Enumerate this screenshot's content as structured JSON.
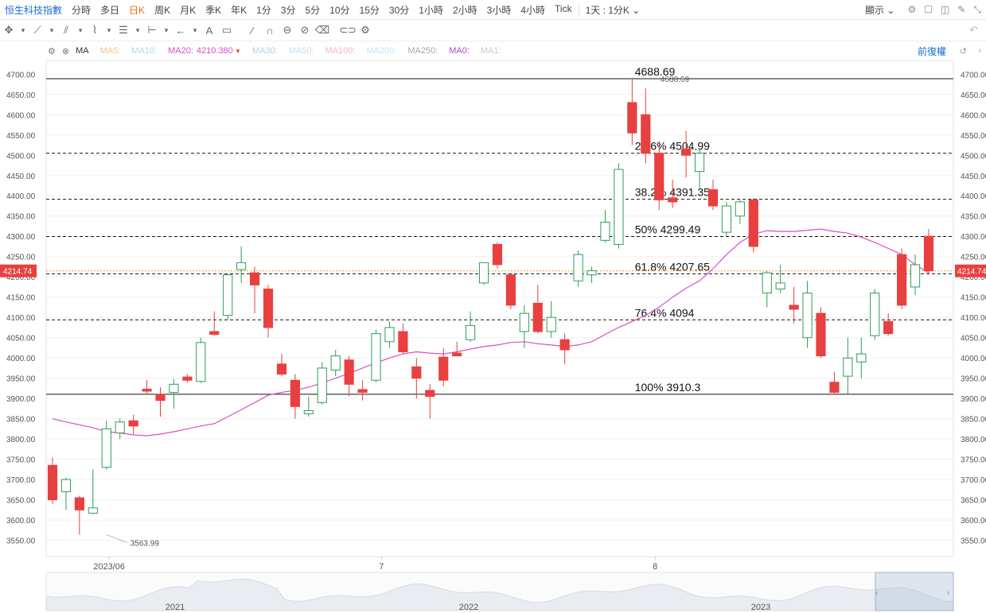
{
  "toolbar": {
    "symbol": "恒生科技指數",
    "periods": [
      "分時",
      "多日",
      "日K",
      "周K",
      "月K",
      "季K",
      "年K",
      "1分",
      "3分",
      "5分",
      "10分",
      "15分",
      "30分",
      "1小時",
      "2小時",
      "3小時",
      "4小時",
      "Tick"
    ],
    "active_period": "日K",
    "range_label": "1天 : 1分K",
    "display_label": "顯示"
  },
  "ma_bar": {
    "indicator": "MA",
    "items": [
      {
        "label": "MA5:",
        "value": "",
        "color": "#f4c28f"
      },
      {
        "label": "MA10:",
        "value": "",
        "color": "#b7d3f0"
      },
      {
        "label": "MA20:",
        "value": "4210.380",
        "color": "#d94fc5"
      },
      {
        "label": "MA30:",
        "value": "",
        "color": "#b5cfee"
      },
      {
        "label": "MA50:",
        "value": "",
        "color": "#c9daf1"
      },
      {
        "label": "MA100:",
        "value": "",
        "color": "#f2b6c8"
      },
      {
        "label": "MA200:",
        "value": "",
        "color": "#bde8f2"
      },
      {
        "label": "MA250:",
        "value": "",
        "color": "#a9a9a9"
      },
      {
        "label": "MA0:",
        "value": "",
        "color": "#b048c4"
      },
      {
        "label": "MA1:",
        "value": "",
        "color": "#c9c9c9"
      }
    ],
    "adjust_label": "前復權"
  },
  "chart_data": {
    "type": "candlestick",
    "up_color": "#2e9e5a",
    "down_color": "#e84040",
    "ma_color": "#d94fc5",
    "ylim": [
      3510,
      4730
    ],
    "y_ticks": [
      3550,
      3600,
      3650,
      3700,
      3750,
      3800,
      3850,
      3900,
      3950,
      4000,
      4050,
      4100,
      4150,
      4200,
      4250,
      4300,
      4350,
      4400,
      4450,
      4500,
      4550,
      4600,
      4650,
      4700
    ],
    "current_price": "4214.74",
    "x_labels": [
      {
        "label": "2023/06",
        "index": 4.2
      },
      {
        "label": "7",
        "index": 24.4
      },
      {
        "label": "8",
        "index": 44.7
      }
    ],
    "candles": [
      {
        "o": 3735,
        "h": 3755,
        "l": 3640,
        "c": 3650
      },
      {
        "o": 3670,
        "h": 3705,
        "l": 3625,
        "c": 3700
      },
      {
        "o": 3655,
        "h": 3660,
        "l": 3563.99,
        "c": 3625
      },
      {
        "o": 3617,
        "h": 3725,
        "l": 3615,
        "c": 3630
      },
      {
        "o": 3730,
        "h": 3845,
        "l": 3725,
        "c": 3825
      },
      {
        "o": 3815,
        "h": 3850,
        "l": 3800,
        "c": 3842
      },
      {
        "o": 3845,
        "h": 3860,
        "l": 3812,
        "c": 3832
      },
      {
        "o": 3923,
        "h": 3945,
        "l": 3912,
        "c": 3918
      },
      {
        "o": 3910,
        "h": 3928,
        "l": 3855,
        "c": 3895
      },
      {
        "o": 3915,
        "h": 3948,
        "l": 3875,
        "c": 3935
      },
      {
        "o": 3953,
        "h": 3960,
        "l": 3938,
        "c": 3945
      },
      {
        "o": 3942,
        "h": 4050,
        "l": 3938,
        "c": 4038
      },
      {
        "o": 4065,
        "h": 4115,
        "l": 4055,
        "c": 4058
      },
      {
        "o": 4105,
        "h": 4205,
        "l": 4095,
        "c": 4205
      },
      {
        "o": 4218,
        "h": 4275,
        "l": 4185,
        "c": 4235
      },
      {
        "o": 4210,
        "h": 4225,
        "l": 4110,
        "c": 4180
      },
      {
        "o": 4170,
        "h": 4180,
        "l": 4050,
        "c": 4075
      },
      {
        "o": 3985,
        "h": 4010,
        "l": 3955,
        "c": 3960
      },
      {
        "o": 3945,
        "h": 3960,
        "l": 3850,
        "c": 3880
      },
      {
        "o": 3862,
        "h": 3905,
        "l": 3855,
        "c": 3870
      },
      {
        "o": 3890,
        "h": 3990,
        "l": 3885,
        "c": 3975
      },
      {
        "o": 3970,
        "h": 4020,
        "l": 3955,
        "c": 4005
      },
      {
        "o": 3995,
        "h": 4005,
        "l": 3905,
        "c": 3935
      },
      {
        "o": 3922,
        "h": 3945,
        "l": 3895,
        "c": 3915
      },
      {
        "o": 3945,
        "h": 4070,
        "l": 3940,
        "c": 4060
      },
      {
        "o": 4040,
        "h": 4090,
        "l": 4025,
        "c": 4075
      },
      {
        "o": 4065,
        "h": 4085,
        "l": 4010,
        "c": 4015
      },
      {
        "o": 3978,
        "h": 4000,
        "l": 3900,
        "c": 3950
      },
      {
        "o": 3920,
        "h": 3935,
        "l": 3850,
        "c": 3905
      },
      {
        "o": 4002,
        "h": 4025,
        "l": 3930,
        "c": 3945
      },
      {
        "o": 4012,
        "h": 4040,
        "l": 4005,
        "c": 4005
      },
      {
        "o": 4045,
        "h": 4115,
        "l": 4040,
        "c": 4080
      },
      {
        "o": 4185,
        "h": 4235,
        "l": 4180,
        "c": 4235
      },
      {
        "o": 4280,
        "h": 4285,
        "l": 4220,
        "c": 4230
      },
      {
        "o": 4205,
        "h": 4210,
        "l": 4120,
        "c": 4130
      },
      {
        "o": 4065,
        "h": 4130,
        "l": 4025,
        "c": 4110
      },
      {
        "o": 4135,
        "h": 4180,
        "l": 4060,
        "c": 4065
      },
      {
        "o": 4065,
        "h": 4140,
        "l": 4050,
        "c": 4100
      },
      {
        "o": 4045,
        "h": 4060,
        "l": 3985,
        "c": 4020
      },
      {
        "o": 4190,
        "h": 4265,
        "l": 4175,
        "c": 4255
      },
      {
        "o": 4205,
        "h": 4225,
        "l": 4185,
        "c": 4215
      },
      {
        "o": 4290,
        "h": 4365,
        "l": 4285,
        "c": 4335
      },
      {
        "o": 4280,
        "h": 4480,
        "l": 4270,
        "c": 4465
      },
      {
        "o": 4630,
        "h": 4688.69,
        "l": 4525,
        "c": 4555
      },
      {
        "o": 4600,
        "h": 4665,
        "l": 4480,
        "c": 4505
      },
      {
        "o": 4505,
        "h": 4535,
        "l": 4365,
        "c": 4390
      },
      {
        "o": 4395,
        "h": 4440,
        "l": 4370,
        "c": 4385
      },
      {
        "o": 4515,
        "h": 4560,
        "l": 4445,
        "c": 4500
      },
      {
        "o": 4460,
        "h": 4515,
        "l": 4415,
        "c": 4505
      },
      {
        "o": 4415,
        "h": 4440,
        "l": 4365,
        "c": 4375
      },
      {
        "o": 4310,
        "h": 4385,
        "l": 4300,
        "c": 4375
      },
      {
        "o": 4350,
        "h": 4390,
        "l": 4330,
        "c": 4385
      },
      {
        "o": 4390,
        "h": 4395,
        "l": 4260,
        "c": 4275
      },
      {
        "o": 4160,
        "h": 4215,
        "l": 4125,
        "c": 4210
      },
      {
        "o": 4170,
        "h": 4230,
        "l": 4160,
        "c": 4185
      },
      {
        "o": 4130,
        "h": 4175,
        "l": 4085,
        "c": 4120
      },
      {
        "o": 4050,
        "h": 4190,
        "l": 4025,
        "c": 4160
      },
      {
        "o": 4110,
        "h": 4125,
        "l": 4000,
        "c": 4005
      },
      {
        "o": 3940,
        "h": 3965,
        "l": 3910,
        "c": 3915
      },
      {
        "o": 3955,
        "h": 4050,
        "l": 3910,
        "c": 4000
      },
      {
        "o": 3990,
        "h": 4050,
        "l": 3950,
        "c": 4010
      },
      {
        "o": 4055,
        "h": 4170,
        "l": 4045,
        "c": 4160
      },
      {
        "o": 4090,
        "h": 4110,
        "l": 4055,
        "c": 4060
      },
      {
        "o": 4255,
        "h": 4270,
        "l": 4120,
        "c": 4130
      },
      {
        "o": 4175,
        "h": 4255,
        "l": 4155,
        "c": 4230
      },
      {
        "o": 4300,
        "h": 4318,
        "l": 4205,
        "c": 4215
      }
    ],
    "ma20": [
      3850,
      3842,
      3835,
      3828,
      3818,
      3815,
      3810,
      3808,
      3812,
      3818,
      3825,
      3832,
      3838,
      3855,
      3872,
      3890,
      3908,
      3915,
      3920,
      3928,
      3938,
      3950,
      3962,
      3975,
      3988,
      4000,
      4010,
      4015,
      4012,
      4010,
      4015,
      4022,
      4028,
      4032,
      4038,
      4040,
      4035,
      4032,
      4028,
      4032,
      4040,
      4058,
      4075,
      4090,
      4105,
      4125,
      4150,
      4172,
      4190,
      4220,
      4255,
      4285,
      4305,
      4314,
      4312,
      4312,
      4315,
      4318,
      4312,
      4308,
      4298,
      4285,
      4270,
      4255,
      4230,
      4210
    ],
    "fib_levels": [
      {
        "label": "4688.69",
        "value": 4688.69,
        "style": "solid"
      },
      {
        "label": "23.6% 4504.99",
        "value": 4504.99,
        "style": "dashed"
      },
      {
        "label": "38.2% 4391.35",
        "value": 4391.35,
        "style": "dashed"
      },
      {
        "label": "50% 4299.49",
        "value": 4299.49,
        "style": "dashed"
      },
      {
        "label": "61.8% 4207.65",
        "value": 4207.65,
        "style": "dashed"
      },
      {
        "label": "76.4% 4094",
        "value": 4094,
        "style": "dashed"
      },
      {
        "label": "100% 3910.3",
        "value": 3910.3,
        "style": "solid"
      }
    ],
    "annotations": [
      {
        "label": "4688.69",
        "index": 43.8,
        "value": 4688.69
      },
      {
        "label": "3563.99",
        "index": 4.0,
        "value": 3563.99
      }
    ],
    "navigator": {
      "labels": [
        "2021",
        "2022",
        "2023"
      ]
    }
  }
}
